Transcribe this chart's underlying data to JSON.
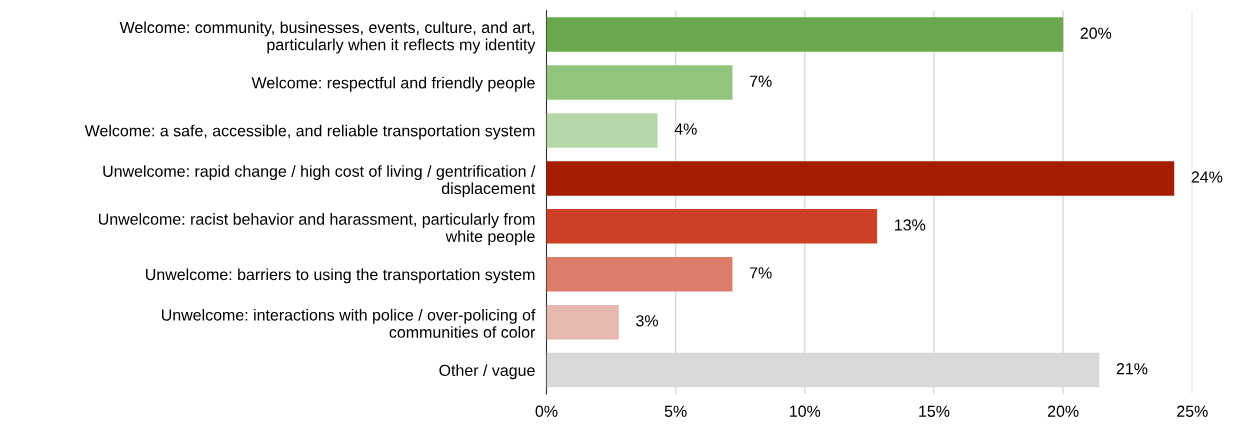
{
  "chart_data": {
    "type": "bar",
    "orientation": "horizontal",
    "categories": [
      "Welcome: community, businesses, events, culture, and art,\nparticularly when it reflects my identity",
      "Welcome: respectful and friendly people",
      "Welcome: a safe, accessible, and reliable transportation system",
      "Unwelcome: rapid change / high cost of living / gentrification /\ndisplacement",
      "Unwelcome: racist behavior and harassment, particularly from\nwhite people",
      "Unwelcome: barriers to using the transportation system",
      "Unwelcome: interactions with police / over-policing of\ncommunities of color",
      "Other / vague"
    ],
    "values": [
      20.0,
      7.2,
      4.3,
      24.3,
      12.8,
      7.2,
      2.8,
      21.4
    ],
    "value_labels": [
      "20%",
      "7%",
      "4%",
      "24%",
      "13%",
      "7%",
      "3%",
      "21%"
    ],
    "colors": [
      "#6aa84f",
      "#93c47d",
      "#b6d7a8",
      "#a61c00",
      "#cc4125",
      "#dd7e6b",
      "#e6b8af",
      "#d9d9d9"
    ],
    "xlim": [
      0,
      25
    ],
    "xticks": [
      {
        "value": 0,
        "label": "0%"
      },
      {
        "value": 5,
        "label": "5%"
      },
      {
        "value": 10,
        "label": "10%"
      },
      {
        "value": 15,
        "label": "15%"
      },
      {
        "value": 20,
        "label": "20%"
      },
      {
        "value": 25,
        "label": "25%"
      }
    ],
    "grid": "x",
    "legend": false
  }
}
